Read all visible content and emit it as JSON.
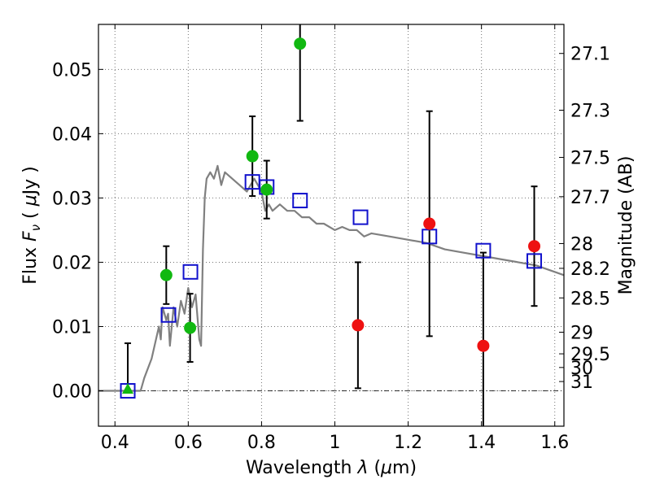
{
  "chart_data": {
    "type": "scatter",
    "xlabel": "Wavelength  λ (μm)",
    "ylabel": "Flux  F_ν  ( μJy )",
    "y2label": "Magnitude (AB)",
    "xlim": [
      0.355,
      1.625
    ],
    "ylim": [
      -0.0055,
      0.057
    ],
    "x_ticks": [
      0.4,
      0.6,
      0.8,
      1.0,
      1.2,
      1.4,
      1.6
    ],
    "x_tick_labels": [
      "0.4",
      "0.6",
      "0.8",
      "1",
      "1.2",
      "1.4",
      "1.6"
    ],
    "y_ticks": [
      0.0,
      0.01,
      0.02,
      0.03,
      0.04,
      0.05
    ],
    "y_tick_labels": [
      "0.00",
      "0.01",
      "0.02",
      "0.03",
      "0.04",
      "0.05"
    ],
    "magnitude_ticks": [
      {
        "label": "27.1",
        "value": 27.1
      },
      {
        "label": "27.3",
        "value": 27.3
      },
      {
        "label": "27.5",
        "value": 27.5
      },
      {
        "label": "27.7",
        "value": 27.7
      },
      {
        "label": "28",
        "value": 28.0
      },
      {
        "label": "28.2",
        "value": 28.2
      },
      {
        "label": "28.5",
        "value": 28.5
      },
      {
        "label": "29",
        "value": 29.0
      },
      {
        "label": "29.5",
        "value": 29.5
      },
      {
        "label": "30",
        "value": 30.0
      },
      {
        "label": "31",
        "value": 31.0
      }
    ],
    "grid": true,
    "colors": {
      "green": "#11b811",
      "red": "#ee1111",
      "blue": "#1111cc",
      "model": "#808080",
      "errorbar": "#000000"
    },
    "series": [
      {
        "name": "model SED",
        "type": "line",
        "x": [
          0.355,
          0.47,
          0.48,
          0.5,
          0.52,
          0.525,
          0.53,
          0.535,
          0.54,
          0.545,
          0.55,
          0.56,
          0.57,
          0.58,
          0.59,
          0.6,
          0.61,
          0.62,
          0.63,
          0.635,
          0.64,
          0.645,
          0.65,
          0.66,
          0.67,
          0.68,
          0.69,
          0.7,
          0.72,
          0.74,
          0.76,
          0.78,
          0.8,
          0.81,
          0.82,
          0.83,
          0.85,
          0.87,
          0.89,
          0.91,
          0.93,
          0.95,
          0.97,
          1.0,
          1.02,
          1.04,
          1.06,
          1.08,
          1.1,
          1.15,
          1.2,
          1.25,
          1.3,
          1.35,
          1.4,
          1.45,
          1.5,
          1.55,
          1.6,
          1.625
        ],
        "y": [
          0.0,
          0.0,
          0.002,
          0.005,
          0.01,
          0.008,
          0.013,
          0.012,
          0.011,
          0.012,
          0.007,
          0.013,
          0.01,
          0.014,
          0.012,
          0.016,
          0.013,
          0.015,
          0.008,
          0.007,
          0.022,
          0.03,
          0.033,
          0.034,
          0.033,
          0.035,
          0.032,
          0.034,
          0.033,
          0.032,
          0.031,
          0.033,
          0.031,
          0.028,
          0.029,
          0.028,
          0.029,
          0.028,
          0.028,
          0.027,
          0.027,
          0.026,
          0.026,
          0.025,
          0.0255,
          0.025,
          0.025,
          0.024,
          0.0245,
          0.024,
          0.0235,
          0.023,
          0.022,
          0.0215,
          0.021,
          0.0205,
          0.02,
          0.0195,
          0.0185,
          0.018
        ]
      },
      {
        "name": "green detections",
        "type": "points",
        "points": [
          {
            "x": 0.435,
            "y": 0.0002,
            "err_lo": 0.0,
            "err_hi": 0.0072,
            "marker": "triangle"
          },
          {
            "x": 0.54,
            "y": 0.018,
            "err_lo": 0.0045,
            "err_hi": 0.0045,
            "marker": "circle"
          },
          {
            "x": 0.605,
            "y": 0.0098,
            "err_lo": 0.0053,
            "err_hi": 0.0053,
            "marker": "circle"
          },
          {
            "x": 0.775,
            "y": 0.0365,
            "err_lo": 0.0062,
            "err_hi": 0.0062,
            "marker": "circle"
          },
          {
            "x": 0.814,
            "y": 0.0313,
            "err_lo": 0.0045,
            "err_hi": 0.0045,
            "marker": "circle"
          },
          {
            "x": 0.905,
            "y": 0.054,
            "err_lo": 0.012,
            "err_hi": 0.012,
            "marker": "circle"
          }
        ]
      },
      {
        "name": "red detections",
        "type": "points",
        "points": [
          {
            "x": 1.063,
            "y": 0.0102,
            "err_lo": 0.0098,
            "err_hi": 0.0098,
            "marker": "circle"
          },
          {
            "x": 1.258,
            "y": 0.026,
            "err_lo": 0.0175,
            "err_hi": 0.0175,
            "marker": "circle"
          },
          {
            "x": 1.405,
            "y": 0.007,
            "err_lo": 0.0145,
            "err_hi": 0.0145,
            "marker": "circle"
          },
          {
            "x": 1.544,
            "y": 0.0225,
            "err_lo": 0.0093,
            "err_hi": 0.0093,
            "marker": "circle"
          }
        ]
      },
      {
        "name": "model fluxes",
        "type": "points",
        "points": [
          {
            "x": 0.435,
            "y": 0.0,
            "marker": "square"
          },
          {
            "x": 0.546,
            "y": 0.0118,
            "marker": "square"
          },
          {
            "x": 0.606,
            "y": 0.0185,
            "marker": "square"
          },
          {
            "x": 0.775,
            "y": 0.0325,
            "marker": "square"
          },
          {
            "x": 0.814,
            "y": 0.0317,
            "marker": "square"
          },
          {
            "x": 0.905,
            "y": 0.0296,
            "marker": "square"
          },
          {
            "x": 1.07,
            "y": 0.027,
            "marker": "square"
          },
          {
            "x": 1.258,
            "y": 0.024,
            "marker": "square"
          },
          {
            "x": 1.405,
            "y": 0.0218,
            "marker": "square"
          },
          {
            "x": 1.544,
            "y": 0.0202,
            "marker": "square"
          }
        ]
      }
    ]
  }
}
